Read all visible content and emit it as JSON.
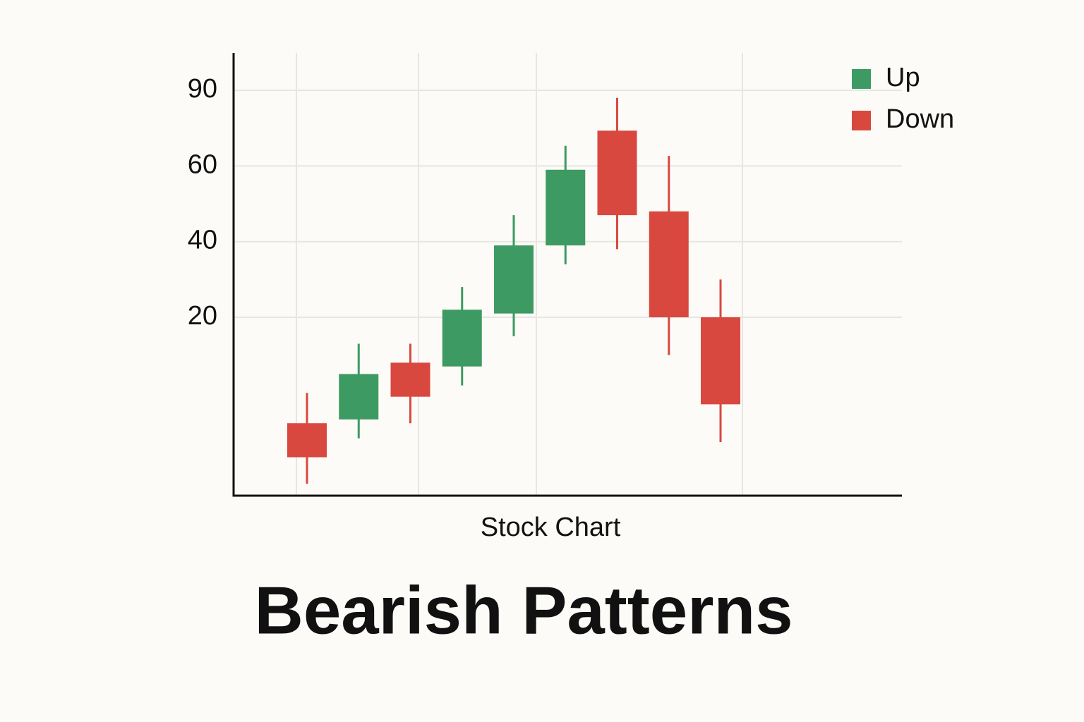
{
  "chart_data": {
    "type": "candlestick",
    "title": "Bearish Patterns",
    "x_label": "Stock Chart",
    "categories": [
      null,
      null,
      null,
      null,
      null,
      null,
      null,
      null,
      null
    ],
    "open": [
      -8,
      -7,
      8,
      7,
      21,
      39,
      74,
      48,
      20
    ],
    "high": [
      0,
      13,
      13,
      28,
      47,
      68,
      87,
      64,
      30
    ],
    "low": [
      -24,
      -12,
      -8,
      2,
      15,
      34,
      38,
      10,
      -13
    ],
    "close": [
      -17,
      5,
      -1,
      22,
      39,
      59,
      47,
      20,
      -3
    ],
    "legend": [
      {
        "name": "Up",
        "color": "#3d9a62"
      },
      {
        "name": "Down",
        "color": "#d9483f"
      }
    ],
    "yticks": [
      20,
      40,
      60,
      90
    ],
    "grid": true,
    "legend_position": "upper right"
  }
}
